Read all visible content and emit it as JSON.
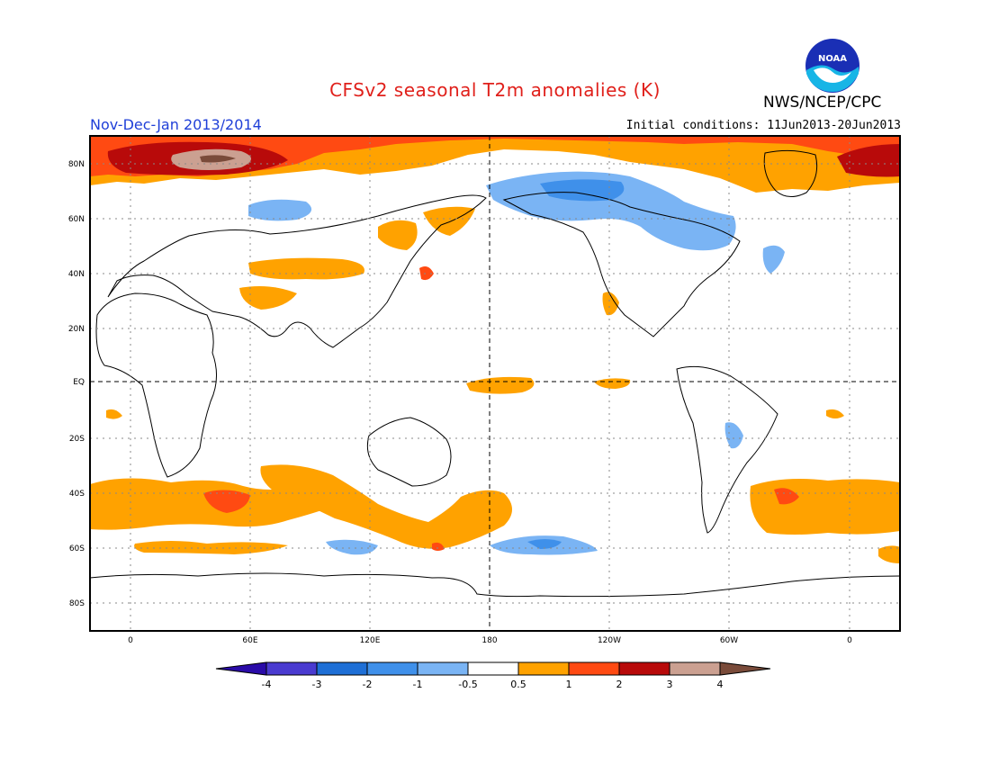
{
  "header": {
    "title": "CFSv2 seasonal T2m anomalies (K)",
    "agency": "NWS/NCEP/CPC",
    "logo_text": "NOAA",
    "period": "Nov-Dec-Jan 2013/2014",
    "initial_conditions": "Initial conditions: 11Jun2013-20Jun2013"
  },
  "map": {
    "lat_labels": [
      "80N",
      "60N",
      "40N",
      "20N",
      "EQ",
      "20S",
      "40S",
      "60S",
      "80S"
    ],
    "lon_labels": [
      "0",
      "60E",
      "120E",
      "180",
      "120W",
      "60W",
      "0"
    ],
    "projection": "cylindrical equidistant, centered on 180"
  },
  "legend": {
    "labels": [
      "-4",
      "-3",
      "-2",
      "-1",
      "-0.5",
      "0.5",
      "1",
      "2",
      "3",
      "4"
    ],
    "colors": [
      "#2a0ba8",
      "#4a3bd0",
      "#1e6fd6",
      "#3f90ea",
      "#7ab4f4",
      "#ffffff",
      "#ffa200",
      "#ff4a12",
      "#b80a0a",
      "#cba091",
      "#7a4b3a"
    ]
  },
  "colors": {
    "title": "#e0201b",
    "period": "#1f3fd8",
    "positive_05": "#ffa200",
    "positive_1": "#ff4a12",
    "positive_2": "#b80a0a",
    "positive_3": "#cba091",
    "negative_05": "#7ab4f4",
    "negative_1": "#3f90ea"
  }
}
